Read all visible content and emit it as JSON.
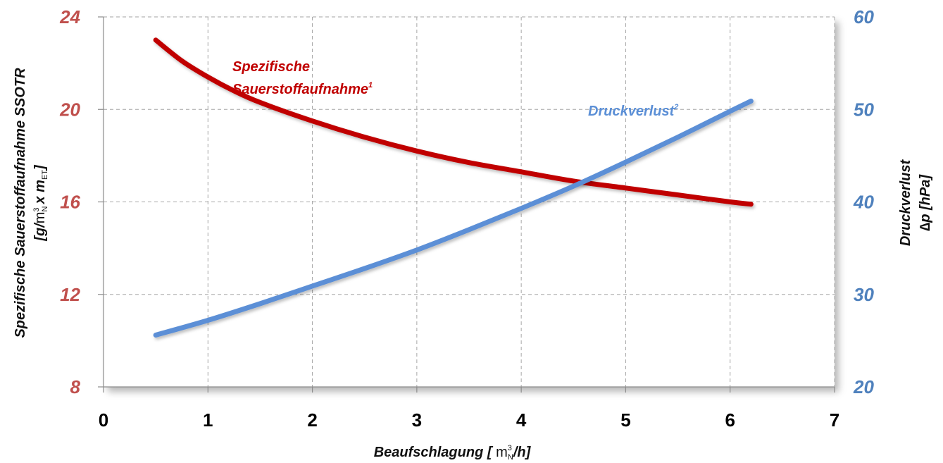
{
  "chart_data": {
    "type": "line",
    "title": "",
    "xlabel": {
      "prefix": "Beaufschlagung [ ",
      "unit_base": "m",
      "unit_sup": "3",
      "unit_sub": "N",
      "suffix": "/h]"
    },
    "ylabel_left": {
      "line1": "Spezifische Sauerstoffaufnahme SSOTR",
      "line2_a": "[g/",
      "line2_unit_base": "m",
      "line2_unit_sup": "3",
      "line2_unit_sub": "N",
      "line2_b": "x m",
      "line2_sub": "ET",
      "line2_c": "]"
    },
    "ylabel_right": {
      "line1": "Druckverlust",
      "line2": "∆p [hPa]"
    },
    "xlim": [
      0,
      7
    ],
    "ylim_left": [
      8,
      24
    ],
    "ylim_right": [
      20,
      60
    ],
    "x_ticks": [
      "0",
      "1",
      "2",
      "3",
      "4",
      "5",
      "6",
      "7"
    ],
    "y_left_ticks": [
      "8",
      "12",
      "16",
      "20",
      "24"
    ],
    "y_right_ticks": [
      "20",
      "30",
      "40",
      "50",
      "60"
    ],
    "grid": true,
    "series": [
      {
        "name_line1": "Spezifische",
        "name_line2": "Sauerstoffaufnahme",
        "name_sup": "1",
        "axis": "left",
        "color": "#C00000",
        "x": [
          0.5,
          0.75,
          1.0,
          1.25,
          1.5,
          2.0,
          2.5,
          3.0,
          3.5,
          4.0,
          4.5,
          5.0,
          5.5,
          6.0,
          6.2
        ],
        "y": [
          23.0,
          22.1,
          21.4,
          20.8,
          20.3,
          19.5,
          18.8,
          18.2,
          17.7,
          17.3,
          16.9,
          16.6,
          16.3,
          16.0,
          15.9
        ]
      },
      {
        "name": "Druckverlust",
        "name_sup": "2",
        "axis": "right",
        "color": "#5B8FD6",
        "x": [
          0.5,
          1.0,
          1.5,
          2.0,
          2.5,
          3.0,
          3.5,
          4.0,
          4.5,
          5.0,
          5.5,
          6.0,
          6.2
        ],
        "y": [
          25.6,
          27.2,
          29.0,
          30.9,
          32.8,
          34.8,
          37.0,
          39.3,
          41.7,
          44.3,
          47.0,
          49.8,
          50.9
        ]
      }
    ],
    "colors": {
      "left_axis": "#C0504D",
      "right_axis": "#4F81BD",
      "grid": "#A6A6A6"
    }
  }
}
